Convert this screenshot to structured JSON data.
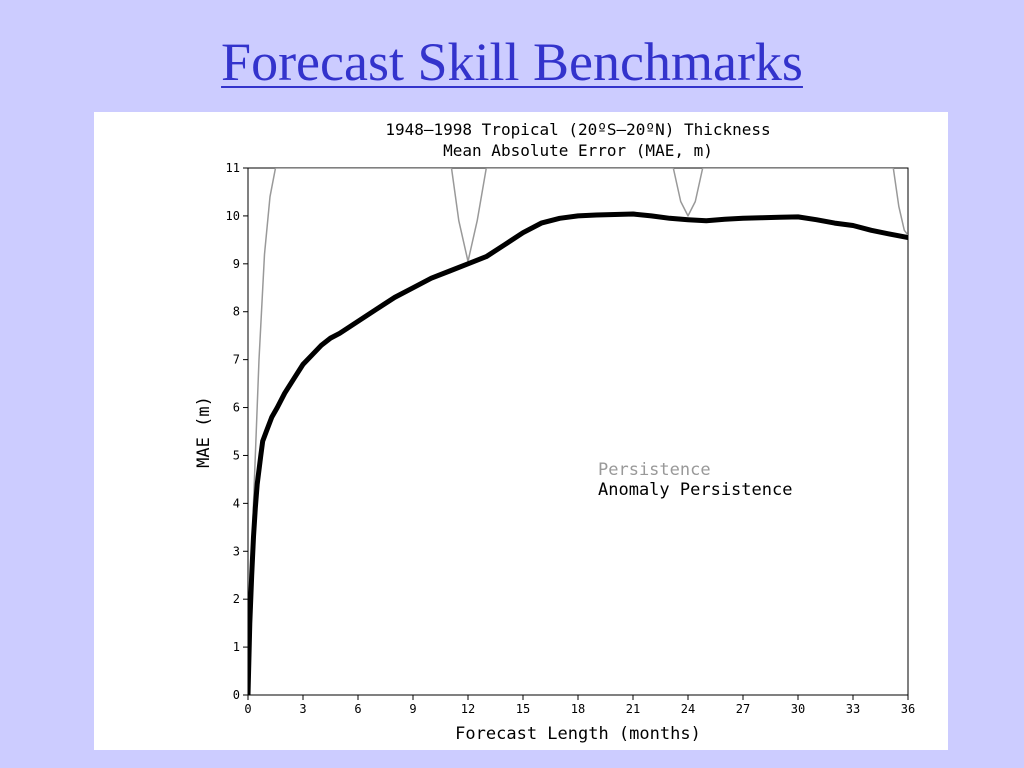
{
  "slide": {
    "title": "Forecast Skill Benchmarks"
  },
  "chart_data": {
    "type": "line",
    "title_lines": [
      "1948–1998 Tropical (20ºS–20ºN) Thickness",
      "Mean Absolute Error (MAE, m)"
    ],
    "xlabel": "Forecast Length (months)",
    "ylabel": "MAE (m)",
    "xlim": [
      0,
      36
    ],
    "ylim": [
      0,
      11
    ],
    "xticks": [
      0,
      3,
      6,
      9,
      12,
      15,
      18,
      21,
      24,
      27,
      30,
      33,
      36
    ],
    "yticks": [
      0,
      1,
      2,
      3,
      4,
      5,
      6,
      7,
      8,
      9,
      10,
      11
    ],
    "grid": false,
    "legend_position": "center-right",
    "series": [
      {
        "name": "Persistence",
        "color": "#999999",
        "style": "thin",
        "x": [
          0,
          0.3,
          0.6,
          0.9,
          1.2,
          1.5,
          11.1,
          11.5,
          12,
          12.5,
          13.0,
          23.2,
          23.6,
          24,
          24.4,
          24.8,
          35.2,
          35.5,
          35.8,
          36
        ],
        "y": [
          0,
          4.0,
          7.0,
          9.2,
          10.4,
          11.0,
          11.0,
          9.9,
          9.05,
          9.9,
          11.0,
          11.0,
          10.3,
          10.0,
          10.3,
          11.0,
          11.0,
          10.2,
          9.7,
          9.6
        ]
      },
      {
        "name": "Anomaly Persistence",
        "color": "#000000",
        "style": "thick",
        "x": [
          0,
          0.1,
          0.2,
          0.3,
          0.4,
          0.5,
          0.7,
          0.8,
          1,
          1.3,
          1.6,
          2,
          2.5,
          3,
          3.5,
          4,
          4.5,
          5,
          6,
          7,
          8,
          9,
          10,
          11,
          12,
          13,
          14,
          15,
          16,
          17,
          18,
          19,
          20,
          21,
          22,
          23,
          24,
          25,
          26,
          27,
          28,
          29,
          30,
          31,
          32,
          33,
          34,
          35,
          36
        ],
        "y": [
          0,
          1.5,
          2.5,
          3.3,
          3.9,
          4.4,
          5.0,
          5.3,
          5.5,
          5.8,
          6.0,
          6.3,
          6.6,
          6.9,
          7.1,
          7.3,
          7.45,
          7.55,
          7.8,
          8.05,
          8.3,
          8.5,
          8.7,
          8.85,
          9.0,
          9.15,
          9.4,
          9.65,
          9.85,
          9.95,
          10.0,
          10.02,
          10.03,
          10.04,
          10.0,
          9.95,
          9.92,
          9.9,
          9.93,
          9.95,
          9.96,
          9.97,
          9.98,
          9.92,
          9.85,
          9.8,
          9.7,
          9.62,
          9.55
        ]
      }
    ]
  }
}
